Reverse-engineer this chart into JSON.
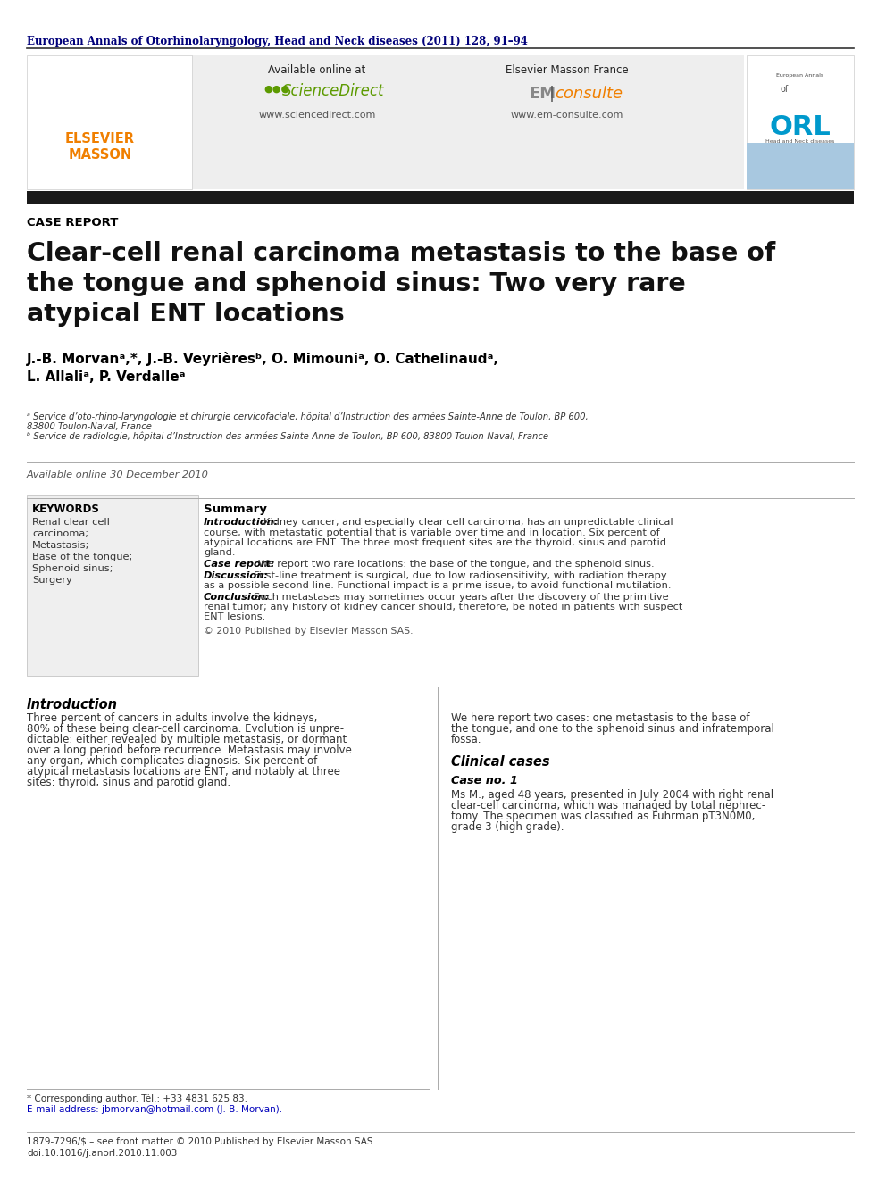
{
  "journal_line": "European Annals of Otorhinolaryngology, Head and Neck diseases (2011) 128, 91–94",
  "section_label": "CASE REPORT",
  "title_line1": "Clear-cell renal carcinoma metastasis to the base of",
  "title_line2": "the tongue and sphenoid sinus: Two very rare",
  "title_line3": "atypical ENT locations",
  "authors_line1": "J.-B. Morvanᵃ,*, J.-B. Veyrièresᵇ, O. Mimouniᵃ, O. Cathelinaudᵃ,",
  "authors_line2": "L. Allaliᵃ, P. Verdalleᵃ",
  "affil_a1": "ᵃ Service d’oto-rhino-laryngologie et chirurgie cervicofaciale, hôpital d’Instruction des armées Sainte-Anne de Toulon, BP 600,",
  "affil_a2": "83800 Toulon-Naval, France",
  "affil_b": "ᵇ Service de radiologie, hôpital d’Instruction des armées Sainte-Anne de Toulon, BP 600, 83800 Toulon-Naval, France",
  "available_online": "Available online 30 December 2010",
  "keywords_title": "KEYWORDS",
  "keywords": [
    "Renal clear cell",
    "carcinoma;",
    "Metastasis;",
    "Base of the tongue;",
    "Sphenoid sinus;",
    "Surgery"
  ],
  "summary_title": "Summary",
  "summary_intro_label": "Introduction:",
  "summary_intro_lines": [
    "Kidney cancer, and especially clear cell carcinoma, has an unpredictable clinical",
    "course, with metastatic potential that is variable over time and in location. Six percent of",
    "atypical locations are ENT. The three most frequent sites are the thyroid, sinus and parotid",
    "gland."
  ],
  "summary_case_label": "Case report:",
  "summary_case_text": "We report two rare locations: the base of the tongue, and the sphenoid sinus.",
  "summary_disc_label": "Discussion:",
  "summary_disc_lines": [
    "First-line treatment is surgical, due to low radiosensitivity, with radiation therapy",
    "as a possible second line. Functional impact is a prime issue, to avoid functional mutilation."
  ],
  "summary_conc_label": "Conclusion:",
  "summary_conc_lines": [
    "Such metastases may sometimes occur years after the discovery of the primitive",
    "renal tumor; any history of kidney cancer should, therefore, be noted in patients with suspect",
    "ENT lesions."
  ],
  "copyright": "© 2010 Published by Elsevier Masson SAS.",
  "intro_section_title": "Introduction",
  "intro_left_lines": [
    "Three percent of cancers in adults involve the kidneys,",
    "80% of these being clear-cell carcinoma. Evolution is unpre-",
    "dictable: either revealed by multiple metastasis, or dormant",
    "over a long period before recurrence. Metastasis may involve",
    "any organ, which complicates diagnosis. Six percent of",
    "atypical metastasis locations are ENT, and notably at three",
    "sites: thyroid, sinus and parotid gland."
  ],
  "intro_right_lines": [
    "We here report two cases: one metastasis to the base of",
    "the tongue, and one to the sphenoid sinus and infratemporal",
    "fossa."
  ],
  "clinical_title": "Clinical cases",
  "case_no1": "Case no. 1",
  "case1_lines": [
    "Ms M., aged 48 years, presented in July 2004 with right renal",
    "clear-cell carcinoma, which was managed by total nephrec-",
    "tomy. The specimen was classified as Führman pT3N0M0,",
    "grade 3 (high grade)."
  ],
  "footnote1": "* Corresponding author. Tél.: +33 4831 625 83.",
  "footnote2": "E-mail address: jbmorvan@hotmail.com (J.-B. Morvan).",
  "footer1": "1879-7296/$ – see front matter © 2010 Published by Elsevier Masson SAS.",
  "footer2": "doi:10.1016/j.anorl.2010.11.003",
  "bg": "#ffffff",
  "journal_color": "#00007a",
  "title_color": "#111111",
  "bar_color": "#1a1a1a",
  "elsevier_orange": "#f07f00",
  "scidir_green": "#5c9a00",
  "orl_blue": "#0099cc",
  "light_blue": "#a8c8e0",
  "gray_bg": "#eeeeee",
  "kw_bg": "#efefef"
}
